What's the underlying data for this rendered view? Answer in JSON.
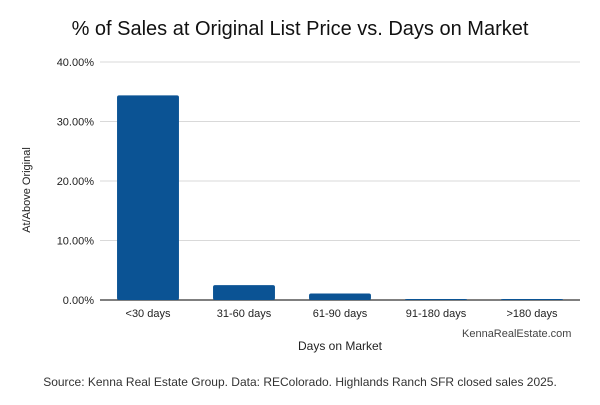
{
  "chart_data": {
    "type": "bar",
    "title": "% of Sales at Original List Price vs. Days on Market",
    "xlabel": "Days on Market",
    "ylabel": "At/Above Original",
    "categories": [
      "<30 days",
      "31-60 days",
      "61-90 days",
      "91-180 days",
      ">180 days"
    ],
    "values": [
      34.4,
      2.5,
      1.1,
      0.1,
      0.1
    ],
    "ylim": [
      0,
      40
    ],
    "yticks": [
      "0.00%",
      "10.00%",
      "20.00%",
      "30.00%",
      "40.00%"
    ],
    "grid": true,
    "legend": "none",
    "bar_color": "#0b5394",
    "watermark": "KennaRealEstate.com",
    "source": "Source: Kenna Real Estate Group. Data: REColorado. Highlands Ranch SFR closed sales 2025."
  }
}
